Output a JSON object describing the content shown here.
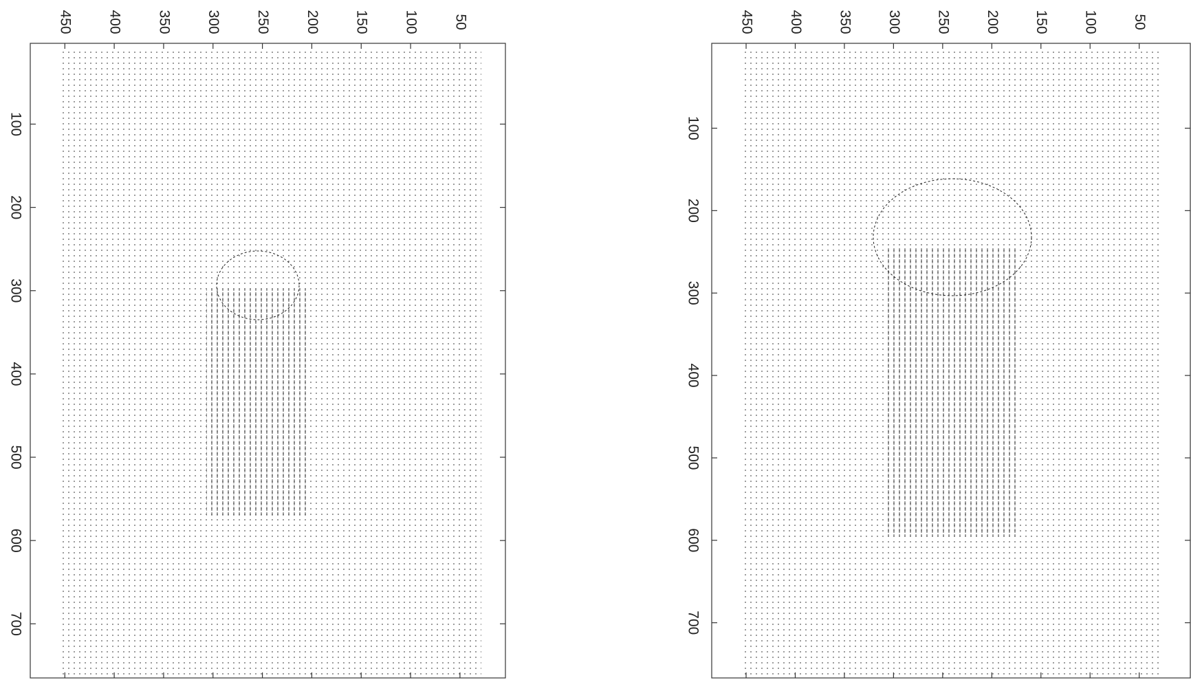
{
  "chart_data": [
    {
      "type": "quiver",
      "xlim": [
        3,
        765
      ],
      "ylim": [
        485,
        4
      ],
      "xticks": [
        100,
        200,
        300,
        400,
        500,
        600,
        700
      ],
      "yticks": [
        50,
        100,
        150,
        200,
        250,
        300,
        350,
        400,
        450
      ]
    },
    {
      "type": "quiver",
      "xlim": [
        -3,
        767
      ],
      "ylim": [
        485,
        -2
      ],
      "xticks": [
        100,
        200,
        300,
        400,
        500,
        600,
        700
      ],
      "yticks": [
        50,
        100,
        150,
        200,
        250,
        300,
        350,
        400,
        450
      ]
    }
  ]
}
